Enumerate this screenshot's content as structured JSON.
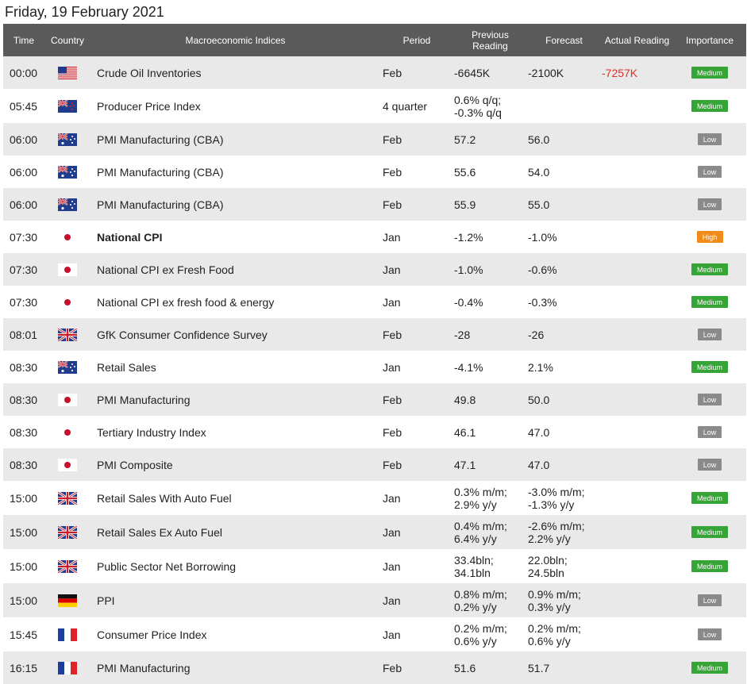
{
  "date_title": "Friday, 19 February 2021",
  "columns": {
    "time": "Time",
    "country": "Country",
    "indices": "Macroeconomic Indices",
    "period": "Period",
    "previous_line1": "Previous",
    "previous_line2": "Reading",
    "forecast": "Forecast",
    "actual": "Actual Reading",
    "importance": "Importance"
  },
  "colors": {
    "header_bg": "#5a5a5a",
    "row_alt_bg": "#e9e9e9",
    "medium": "#36a436",
    "low": "#8a8a8a",
    "high": "#f08a18",
    "actual_negative": "#e0302a"
  },
  "rows": [
    {
      "time": "00:00",
      "flag": "us-flag-icon",
      "index": "Crude Oil Inventories",
      "period": "Feb",
      "previous": [
        "-6645K"
      ],
      "forecast": [
        "-2100K"
      ],
      "actual": "-7257K",
      "importance": "Medium",
      "bold": false,
      "h": 41
    },
    {
      "time": "05:45",
      "flag": "nz-flag-icon",
      "index": "Producer Price Index",
      "period": "4 quarter",
      "previous": [
        "0.6% q/q;",
        "-0.3% q/q"
      ],
      "forecast": [],
      "actual": "",
      "importance": "Medium",
      "bold": false,
      "h": 43
    },
    {
      "time": "06:00",
      "flag": "au-flag-icon",
      "index": "PMI Manufacturing (CBA)",
      "period": "Feb",
      "previous": [
        "57.2"
      ],
      "forecast": [
        "56.0"
      ],
      "actual": "",
      "importance": "Low",
      "bold": false,
      "h": 41
    },
    {
      "time": "06:00",
      "flag": "au-flag-icon",
      "index": "PMI Manufacturing (CBA)",
      "period": "Feb",
      "previous": [
        "55.6"
      ],
      "forecast": [
        "54.0"
      ],
      "actual": "",
      "importance": "Low",
      "bold": false,
      "h": 41
    },
    {
      "time": "06:00",
      "flag": "au-flag-icon",
      "index": "PMI Manufacturing (CBA)",
      "period": "Feb",
      "previous": [
        "55.9"
      ],
      "forecast": [
        "55.0"
      ],
      "actual": "",
      "importance": "Low",
      "bold": false,
      "h": 41
    },
    {
      "time": "07:30",
      "flag": "jp-flag-icon",
      "index": "National CPI",
      "period": "Jan",
      "previous": [
        "-1.2%"
      ],
      "forecast": [
        "-1.0%"
      ],
      "actual": "",
      "importance": "High",
      "bold": true,
      "h": 41
    },
    {
      "time": "07:30",
      "flag": "jp-flag-icon",
      "index": "National CPI ex Fresh Food",
      "period": "Jan",
      "previous": [
        "-1.0%"
      ],
      "forecast": [
        "-0.6%"
      ],
      "actual": "",
      "importance": "Medium",
      "bold": false,
      "h": 41
    },
    {
      "time": "07:30",
      "flag": "jp-flag-icon",
      "index": "National CPI ex fresh food & energy",
      "period": "Jan",
      "previous": [
        "-0.4%"
      ],
      "forecast": [
        "-0.3%"
      ],
      "actual": "",
      "importance": "Medium",
      "bold": false,
      "h": 41
    },
    {
      "time": "08:01",
      "flag": "uk-flag-icon",
      "index": "GfK Consumer Confidence Survey",
      "period": "Feb",
      "previous": [
        "-28"
      ],
      "forecast": [
        "-26"
      ],
      "actual": "",
      "importance": "Low",
      "bold": false,
      "h": 41
    },
    {
      "time": "08:30",
      "flag": "au-flag-icon",
      "index": "Retail Sales",
      "period": "Jan",
      "previous": [
        "-4.1%"
      ],
      "forecast": [
        "2.1%"
      ],
      "actual": "",
      "importance": "Medium",
      "bold": false,
      "h": 41
    },
    {
      "time": "08:30",
      "flag": "jp-flag-icon",
      "index": "PMI Manufacturing",
      "period": "Feb",
      "previous": [
        "49.8"
      ],
      "forecast": [
        "50.0"
      ],
      "actual": "",
      "importance": "Low",
      "bold": false,
      "h": 41
    },
    {
      "time": "08:30",
      "flag": "jp-flag-icon",
      "index": "Tertiary Industry Index",
      "period": "Feb",
      "previous": [
        "46.1"
      ],
      "forecast": [
        "47.0"
      ],
      "actual": "",
      "importance": "Low",
      "bold": false,
      "h": 41
    },
    {
      "time": "08:30",
      "flag": "jp-flag-icon",
      "index": "PMI Composite",
      "period": "Feb",
      "previous": [
        "47.1"
      ],
      "forecast": [
        "47.0"
      ],
      "actual": "",
      "importance": "Low",
      "bold": false,
      "h": 41
    },
    {
      "time": "15:00",
      "flag": "uk-flag-icon",
      "index": "Retail Sales With Auto Fuel",
      "period": "Jan",
      "previous": [
        "0.3% m/m;",
        "2.9% y/y"
      ],
      "forecast": [
        "-3.0% m/m;",
        "-1.3% y/y"
      ],
      "actual": "",
      "importance": "Medium",
      "bold": false,
      "h": 43
    },
    {
      "time": "15:00",
      "flag": "uk-flag-icon",
      "index": "Retail Sales Ex Auto Fuel",
      "period": "Jan",
      "previous": [
        "0.4% m/m;",
        "6.4% y/y"
      ],
      "forecast": [
        "-2.6% m/m;",
        "2.2% y/y"
      ],
      "actual": "",
      "importance": "Medium",
      "bold": false,
      "h": 43
    },
    {
      "time": "15:00",
      "flag": "uk-flag-icon",
      "index": "Public Sector Net Borrowing",
      "period": "Jan",
      "previous": [
        "33.4bln;",
        "34.1bln"
      ],
      "forecast": [
        "22.0bln;",
        "24.5bln"
      ],
      "actual": "",
      "importance": "Medium",
      "bold": false,
      "h": 43
    },
    {
      "time": "15:00",
      "flag": "de-flag-icon",
      "index": "PPI",
      "period": "Jan",
      "previous": [
        "0.8% m/m;",
        "0.2% y/y"
      ],
      "forecast": [
        "0.9% m/m;",
        "0.3% y/y"
      ],
      "actual": "",
      "importance": "Low",
      "bold": false,
      "h": 43
    },
    {
      "time": "15:45",
      "flag": "fr-flag-icon",
      "index": "Consumer Price Index",
      "period": "Jan",
      "previous": [
        "0.2% m/m;",
        "0.6% y/y"
      ],
      "forecast": [
        "0.2% m/m;",
        "0.6% y/y"
      ],
      "actual": "",
      "importance": "Low",
      "bold": false,
      "h": 43
    },
    {
      "time": "16:15",
      "flag": "fr-flag-icon",
      "index": "PMI Manufacturing",
      "period": "Feb",
      "previous": [
        "51.6"
      ],
      "forecast": [
        "51.7"
      ],
      "actual": "",
      "importance": "Medium",
      "bold": false,
      "h": 41
    }
  ]
}
